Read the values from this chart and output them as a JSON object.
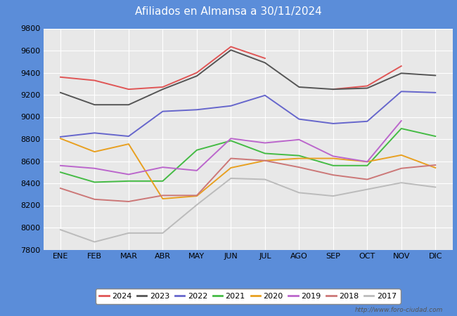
{
  "title": "Afiliados en Almansa a 30/11/2024",
  "title_bg_color": "#5b8dd9",
  "title_text_color": "white",
  "ylim": [
    7800,
    9800
  ],
  "yticks": [
    7800,
    8000,
    8200,
    8400,
    8600,
    8800,
    9000,
    9200,
    9400,
    9600,
    9800
  ],
  "months": [
    "ENE",
    "FEB",
    "MAR",
    "ABR",
    "MAY",
    "JUN",
    "JUL",
    "AGO",
    "SEP",
    "OCT",
    "NOV",
    "DIC"
  ],
  "plot_bg_color": "#e8e8e8",
  "outer_bg_color": "#5b8dd9",
  "watermark": "http://www.foro-ciudad.com",
  "series": {
    "2024": {
      "color": "#e05555",
      "data": [
        9360,
        9330,
        9250,
        9270,
        9400,
        9635,
        9530,
        null,
        9250,
        9280,
        9460,
        null
      ]
    },
    "2023": {
      "color": "#555555",
      "data": [
        9220,
        9110,
        9110,
        9250,
        9370,
        9605,
        9490,
        9270,
        9250,
        9260,
        9395,
        9375
      ]
    },
    "2022": {
      "color": "#6666cc",
      "data": [
        8820,
        8855,
        8825,
        9050,
        9065,
        9100,
        9195,
        8980,
        8940,
        8960,
        9230,
        9220
      ]
    },
    "2021": {
      "color": "#44bb44",
      "data": [
        8500,
        8410,
        8420,
        8420,
        8700,
        8785,
        8670,
        8650,
        8560,
        8560,
        8895,
        8825
      ]
    },
    "2020": {
      "color": "#e8a020",
      "data": [
        8805,
        8685,
        8755,
        8260,
        8285,
        8540,
        8605,
        8625,
        8625,
        8595,
        8655,
        8540
      ]
    },
    "2019": {
      "color": "#bb66cc",
      "data": [
        8560,
        8535,
        8480,
        8545,
        8515,
        8805,
        8765,
        8795,
        8645,
        8595,
        8965,
        null
      ]
    },
    "2018": {
      "color": "#cc7777",
      "data": [
        8355,
        8255,
        8235,
        8290,
        8290,
        8625,
        8605,
        8545,
        8475,
        8435,
        8535,
        8565
      ]
    },
    "2017": {
      "color": "#bbbbbb",
      "data": [
        7980,
        7870,
        7950,
        7950,
        8205,
        8445,
        8435,
        8315,
        8285,
        8345,
        8405,
        8365
      ]
    }
  },
  "series_order": [
    "2024",
    "2023",
    "2022",
    "2021",
    "2020",
    "2019",
    "2018",
    "2017"
  ]
}
